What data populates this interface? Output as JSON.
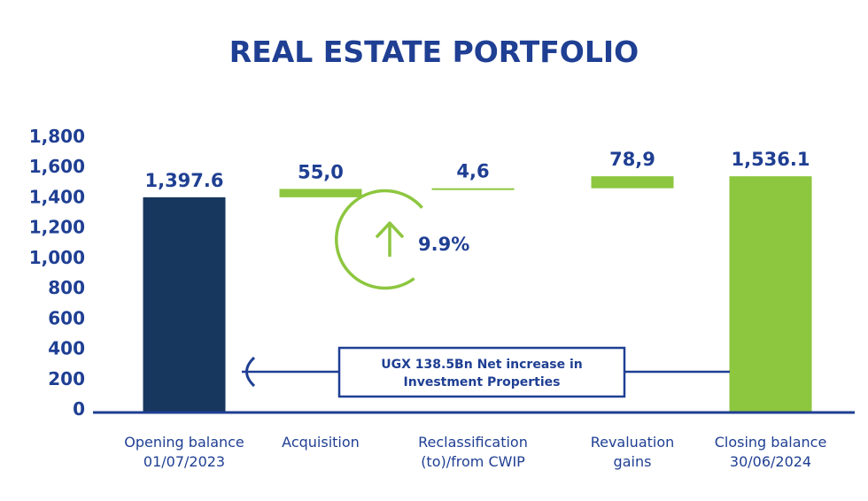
{
  "chart_data": {
    "type": "bar",
    "subtype": "waterfall",
    "title": "REAL ESTATE PORTFOLIO",
    "ylim": [
      0,
      1800
    ],
    "yticks": [
      "0",
      "200",
      "400",
      "600",
      "800",
      "1,000",
      "1,200",
      "1,400",
      "1,600",
      "1,800"
    ],
    "categories": [
      [
        "Opening balance",
        "01/07/2023"
      ],
      [
        "Acquisition"
      ],
      [
        "Reclassification",
        "(to)/from CWIP"
      ],
      [
        "Revaluation",
        "gains"
      ],
      [
        "Closing balance",
        "30/06/2024"
      ]
    ],
    "bars": [
      {
        "kind": "total",
        "value": 1397.6,
        "label": "1,397.6",
        "color": "#17375e"
      },
      {
        "kind": "delta",
        "value": 55.0,
        "label": "55,0",
        "color": "#8dc63f"
      },
      {
        "kind": "delta",
        "value": 4.6,
        "label": "4,6",
        "color": "#8dc63f"
      },
      {
        "kind": "delta",
        "value": 78.9,
        "label": "78,9",
        "color": "#8dc63f"
      },
      {
        "kind": "total",
        "value": 1536.1,
        "label": "1,536.1",
        "color": "#8dc63f"
      }
    ],
    "annotations": {
      "growth_percent": "9.9%",
      "net_increase": [
        "UGX 138.5Bn Net increase in",
        "Investment Properties"
      ]
    },
    "colors": {
      "navy": "#17375e",
      "green": "#8dc63f",
      "text": "#1f3f93",
      "axis": "#1f3f93"
    }
  }
}
